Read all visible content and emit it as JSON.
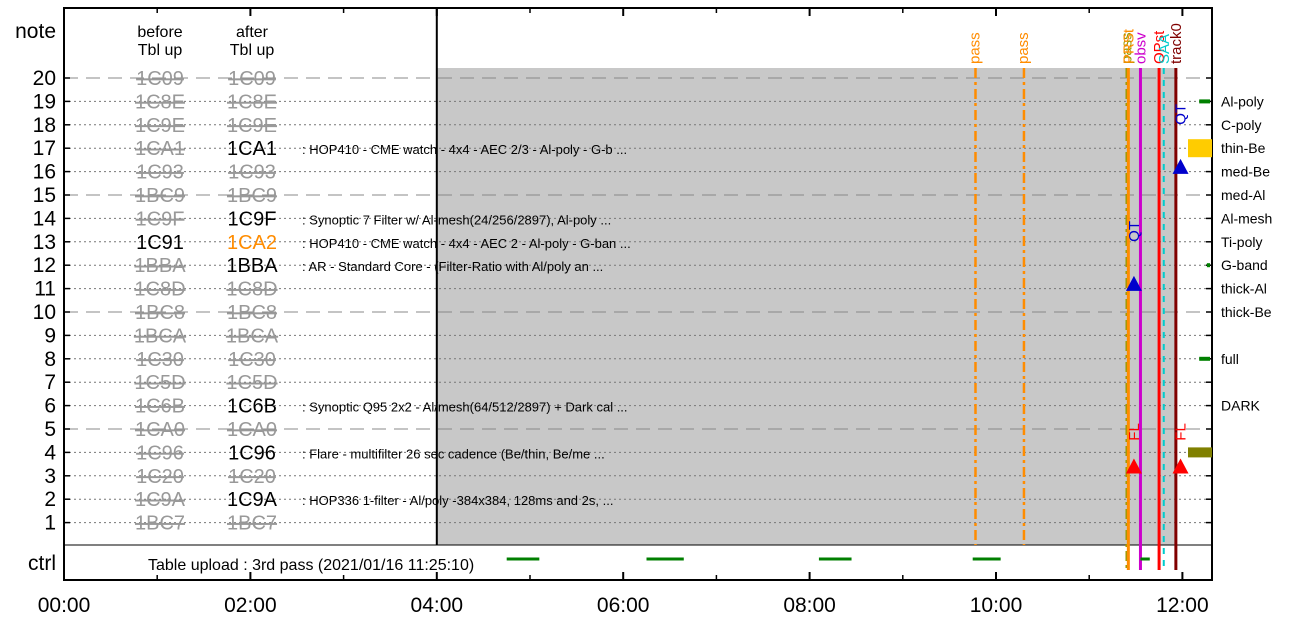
{
  "chart_data": {
    "type": "timeline",
    "x_ticks": [
      "00:00",
      "02:00",
      "04:00",
      "06:00",
      "08:00",
      "10:00",
      "12:00"
    ],
    "xlim_hours": [
      0,
      12.2
    ],
    "note_label": "note",
    "ctrl_label": "ctrl",
    "column_headers": {
      "before": [
        "before",
        "Tbl up"
      ],
      "after": [
        "after",
        "Tbl up"
      ]
    },
    "rows": [
      {
        "note": "20",
        "before": "1C09",
        "after": "1C09",
        "after_style": "strike",
        "desc": ""
      },
      {
        "note": "19",
        "before": "1C8E",
        "after": "1C8E",
        "after_style": "strike",
        "desc": ""
      },
      {
        "note": "18",
        "before": "1C9E",
        "after": "1C9E",
        "after_style": "strike",
        "desc": ""
      },
      {
        "note": "17",
        "before": "1CA1",
        "after": "1CA1",
        "after_style": "active",
        "desc": ": HOP410 - CME watch - 4x4 - AEC 2/3 - Al-poly - G-b ..."
      },
      {
        "note": "16",
        "before": "1C93",
        "after": "1C93",
        "after_style": "strike",
        "desc": ""
      },
      {
        "note": "15",
        "before": "1BC9",
        "after": "1BC9",
        "after_style": "strike",
        "desc": ""
      },
      {
        "note": "14",
        "before": "1C9F",
        "after": "1C9F",
        "after_style": "active",
        "desc": ": Synoptic 7 Filter w/ Al-mesh(24/256/2897), Al-poly ..."
      },
      {
        "note": "13",
        "before": "1C91",
        "before_style": "plain",
        "after": "1CA2",
        "after_style": "changed",
        "desc": ": HOP410 - CME watch - 4x4 - AEC 2 - Al-poly - G-ban ..."
      },
      {
        "note": "12",
        "before": "1BBA",
        "after": "1BBA",
        "after_style": "active",
        "desc": ": AR - Standard Core - (Filter-Ratio with Al/poly an ..."
      },
      {
        "note": "11",
        "before": "1C8D",
        "after": "1C8D",
        "after_style": "strike",
        "desc": ""
      },
      {
        "note": "10",
        "before": "1BC8",
        "after": "1BC8",
        "after_style": "strike",
        "desc": ""
      },
      {
        "note": "9",
        "before": "1BCA",
        "after": "1BCA",
        "after_style": "strike",
        "desc": ""
      },
      {
        "note": "8",
        "before": "1C30",
        "after": "1C30",
        "after_style": "strike",
        "desc": ""
      },
      {
        "note": "7",
        "before": "1C5D",
        "after": "1C5D",
        "after_style": "strike",
        "desc": ""
      },
      {
        "note": "6",
        "before": "1C6B",
        "after": "1C6B",
        "after_style": "active",
        "desc": ": Synoptic Q95 2x2 - Al/mesh(64/512/2897) + Dark cal ..."
      },
      {
        "note": "5",
        "before": "1CA0",
        "after": "1CA0",
        "after_style": "strike",
        "desc": ""
      },
      {
        "note": "4",
        "before": "1C96",
        "after": "1C96",
        "after_style": "active",
        "desc": ": Flare - multifilter 26 sec cadence (Be/thin, Be/me ..."
      },
      {
        "note": "3",
        "before": "1C20",
        "after": "1C20",
        "after_style": "strike",
        "desc": ""
      },
      {
        "note": "2",
        "before": "1C9A",
        "after": "1C9A",
        "after_style": "active",
        "desc": ": HOP336 1-filter - Al/poly -384x384, 128ms and 2s,  ..."
      },
      {
        "note": "1",
        "before": "1BC7",
        "after": "1BC7",
        "after_style": "strike",
        "desc": ""
      }
    ],
    "shaded_region_hours": [
      4.0,
      11.92
    ],
    "ctrl_text": "Table upload : 3rd pass (2021/01/16 11:25:10)",
    "ctrl_segments_hours": [
      [
        4.75,
        5.1
      ],
      [
        6.25,
        6.65
      ],
      [
        8.1,
        8.45
      ],
      [
        9.75,
        10.05
      ],
      [
        11.55,
        11.65
      ]
    ],
    "pass_lines": [
      {
        "label": "pass",
        "hour": 9.78,
        "color": "#ff8c00"
      },
      {
        "label": "pass",
        "hour": 10.3,
        "color": "#ff8c00"
      }
    ],
    "right_event_lines": [
      {
        "label": "pass",
        "hour": 11.4,
        "color": "#999900"
      },
      {
        "label": "PRSt",
        "hour": 11.42,
        "color": "#ff8c00"
      },
      {
        "label": "obsv",
        "hour": 11.55,
        "color": "#cc00cc"
      },
      {
        "label": "OPst",
        "hour": 11.75,
        "color": "#ff0000"
      },
      {
        "label": "SAA",
        "hour": 11.8,
        "color": "#00cccc"
      },
      {
        "label": "track0",
        "hour": 11.93,
        "color": "#800000"
      }
    ],
    "event_markers": [
      {
        "label": "QT",
        "hour": 11.48,
        "note": 13,
        "color": "#0000cc",
        "triangle_note": 11.2
      },
      {
        "label": "QT",
        "hour": 11.98,
        "note": 18,
        "color": "#0000cc",
        "triangle_note": 16.2
      },
      {
        "label": "FL",
        "hour": 11.48,
        "note": 4.5,
        "color": "#ff0000",
        "triangle_note": 3.4
      },
      {
        "label": "FL",
        "hour": 11.98,
        "note": 4.5,
        "color": "#ff0000",
        "triangle_note": 3.4
      }
    ],
    "filters": [
      {
        "label": "Al-poly",
        "note": 19,
        "level": 0.4
      },
      {
        "label": "C-poly",
        "note": 18,
        "level": 0
      },
      {
        "label": "thin-Be",
        "note": 17,
        "level": 1
      },
      {
        "label": "med-Be",
        "note": 16,
        "level": 0
      },
      {
        "label": "med-Al",
        "note": 15,
        "level": 0
      },
      {
        "label": "Al-mesh",
        "note": 14,
        "level": 0
      },
      {
        "label": "Ti-poly",
        "note": 13,
        "level": 0
      },
      {
        "label": "G-band",
        "note": 12,
        "level": 0.05
      },
      {
        "label": "thick-Al",
        "note": 11,
        "level": 0
      },
      {
        "label": "thick-Be",
        "note": 10,
        "level": 0
      },
      {
        "label": "full",
        "note": 8,
        "level": 0.4
      },
      {
        "label": "DARK",
        "note": 6,
        "level": 0
      }
    ],
    "colors": {
      "strike_text": "#999999",
      "active_text": "#000000",
      "changed_text": "#ff8c00",
      "shade": "#c8c8c8",
      "ctrl_segment": "#007f00",
      "filter_bar": "#008000",
      "thin_be_bar": "#ffcc00",
      "olive_bar": "#808000"
    }
  }
}
